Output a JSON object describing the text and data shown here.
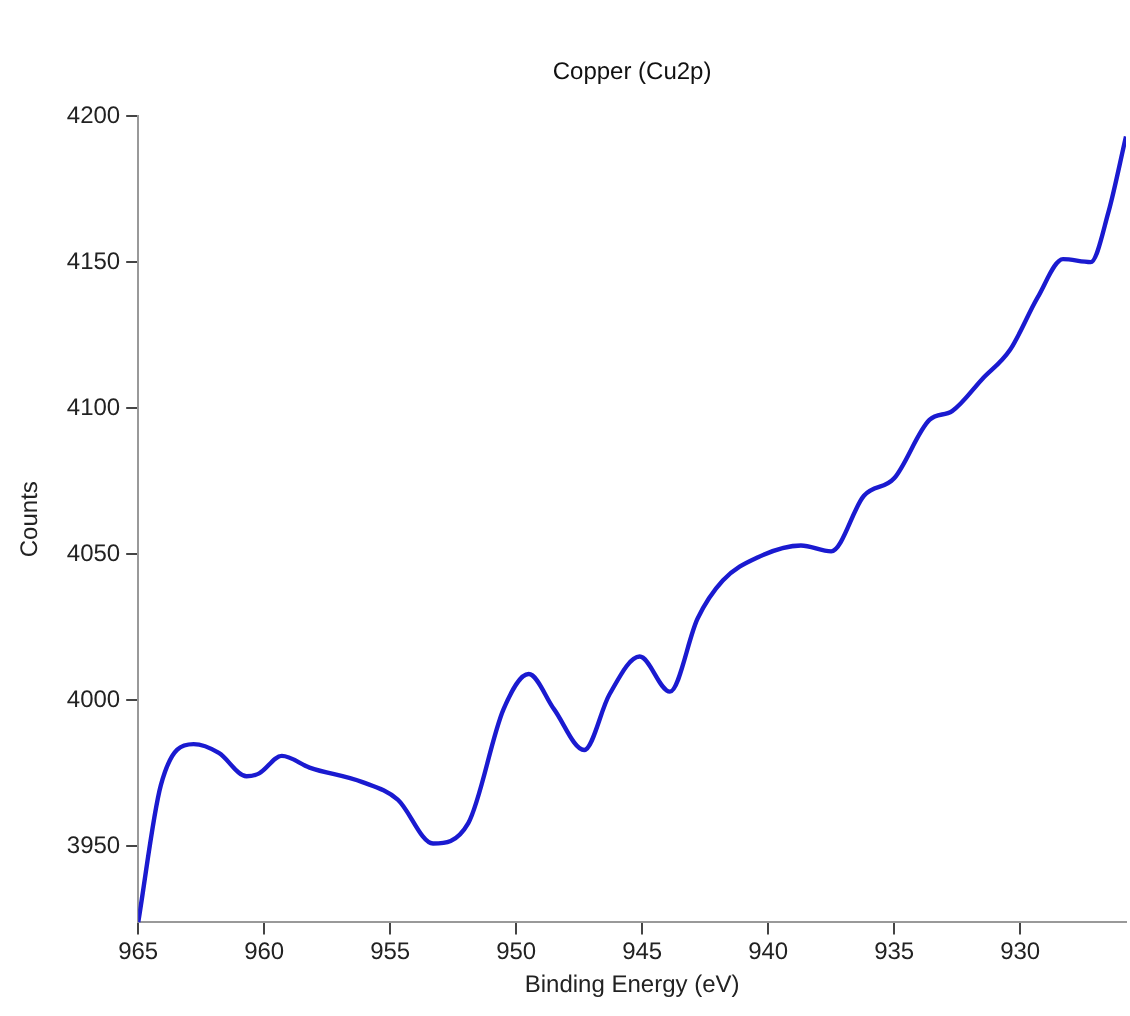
{
  "chart_data": {
    "type": "line",
    "title": "Copper (Cu2p)",
    "xlabel": "Binding Energy (eV)",
    "ylabel": "Counts",
    "x": [
      965,
      964.1,
      962.8,
      961.8,
      960.7,
      960.2,
      959.3,
      958.2,
      956.1,
      954.7,
      953.3,
      951.9,
      950.5,
      949.5,
      948.5,
      947.3,
      946.3,
      945.1,
      943.9,
      942.8,
      941.8,
      940.4,
      938.7,
      937.5,
      936.2,
      935,
      933.6,
      932.7,
      931.5,
      930.4,
      929.3,
      928.3,
      927.2,
      926.5,
      925.8
    ],
    "series": [
      {
        "color": "#1a1ad0",
        "values": [
          3924,
          3971,
          3985,
          3982,
          3974,
          3975,
          3981,
          3977,
          3972,
          3966,
          3951,
          3958,
          3997,
          4009,
          3997,
          3983,
          4002,
          4015,
          4003,
          4028,
          4041,
          4049,
          4053,
          4051,
          4070,
          4076,
          4096,
          4099,
          4110,
          4120,
          4138,
          4151,
          4150,
          4167,
          4193
        ]
      }
    ],
    "xlim": [
      965,
      925.8
    ],
    "ylim": [
      3924,
      4200
    ],
    "xticks": [
      965,
      960,
      955,
      950,
      945,
      940,
      935,
      930
    ],
    "yticks": [
      3950,
      4000,
      4050,
      4100,
      4150,
      4200
    ],
    "grid": false,
    "legend": false,
    "marker": "none",
    "line_style": "solid"
  }
}
